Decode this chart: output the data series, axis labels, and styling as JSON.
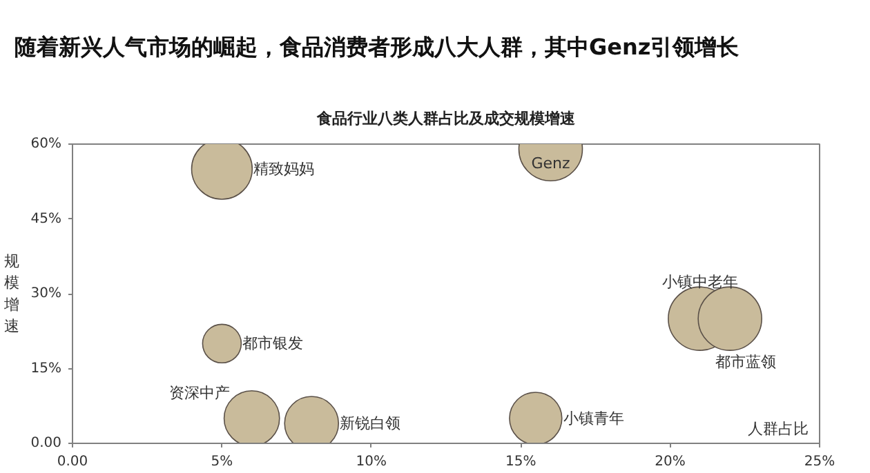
{
  "chart_data": {
    "type": "bubble",
    "title": "食品行业八类人群占比及成交规模增速",
    "subtitle": "随着新兴人气市场的崛起，食品消费者形成八大人群，其中Genz引领增长",
    "xlabel": "人群占比",
    "ylabel": "规模增速",
    "series": [
      {
        "name": "精致妈妈",
        "color": "#c9bb9b",
        "x": [
          5
        ],
        "values": [
          55
        ],
        "sizes": [
          0.91
        ]
      },
      {
        "name": "Genz",
        "color": "#c9bb9b",
        "x": [
          16
        ],
        "values": [
          59
        ],
        "sizes": [
          1
        ]
      },
      {
        "name": "都市银发",
        "color": "#c9bb9b",
        "x": [
          5
        ],
        "values": [
          20
        ],
        "sizes": [
          0.37
        ]
      },
      {
        "name": "资深中产",
        "color": "#c9bb9b",
        "x": [
          6
        ],
        "values": [
          5
        ],
        "sizes": [
          0.76
        ]
      },
      {
        "name": "新锐白领",
        "color": "#c9bb9b",
        "x": [
          8
        ],
        "values": [
          4
        ],
        "sizes": [
          0.72
        ]
      },
      {
        "name": "小镇青年",
        "color": "#c9bb9b",
        "x": [
          15.5
        ],
        "values": [
          5
        ],
        "sizes": [
          0.68
        ]
      },
      {
        "name": "小镇中老年",
        "color": "#c9bb9b",
        "x": [
          21
        ],
        "values": [
          25
        ],
        "sizes": [
          1
        ]
      },
      {
        "name": "都市蓝领",
        "color": "#c9bb9b",
        "x": [
          22
        ],
        "values": [
          25
        ],
        "sizes": [
          1
        ]
      }
    ],
    "xlim": [
      0,
      25
    ],
    "ylim": [
      0,
      60
    ],
    "xticks": [
      {
        "value": 0,
        "label": "0.00"
      },
      {
        "value": 5,
        "label": "5%"
      },
      {
        "value": 10,
        "label": "10%"
      },
      {
        "value": 15,
        "label": "15%"
      },
      {
        "value": 20,
        "label": "20%"
      },
      {
        "value": 25,
        "label": "25%"
      }
    ],
    "yticks": [
      {
        "value": 0,
        "label": "0.00"
      },
      {
        "value": 15,
        "label": "15%"
      },
      {
        "value": 30,
        "label": "30%"
      },
      {
        "value": 45,
        "label": "45%"
      },
      {
        "value": 60,
        "label": "60%"
      }
    ],
    "grid": false
  }
}
